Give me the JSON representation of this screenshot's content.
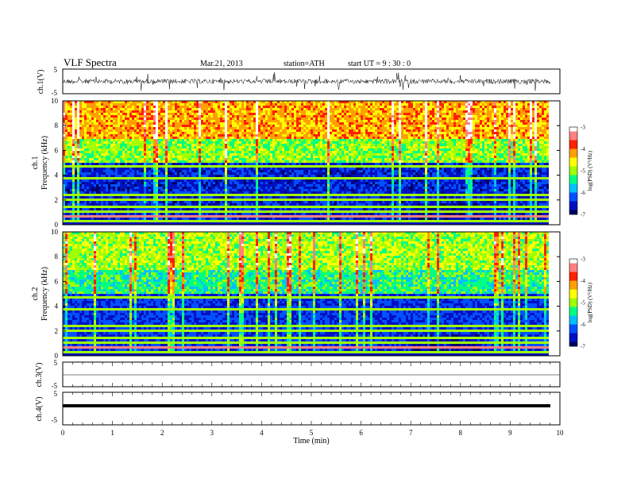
{
  "header": {
    "title": "VLF  Spectra",
    "date": "Mar.21, 2013",
    "station": "station=ATH",
    "start": "start  UT  =   9  : 30 : 0"
  },
  "chart_data": [
    {
      "type": "line",
      "ylabel": "ch.1(V)",
      "ylim": [
        -5,
        5
      ],
      "yticks": [
        "5",
        "-5"
      ],
      "description_trace": "noisy waveform around 0 V"
    },
    {
      "type": "heatmap",
      "ylabel": "ch.1\nFrequency  (kHz)",
      "ylabel_ch": "ch.1",
      "ylabel_freq": "Frequency  (kHz)",
      "ylim": [
        0,
        10
      ],
      "yticks": [
        "0",
        "2",
        "4",
        "6",
        "8",
        "10"
      ],
      "colorbar": {
        "label": "log(PSD) (V²/Hz)",
        "range": [
          -7,
          -3
        ],
        "ticks": [
          "-3",
          "-4",
          "-5",
          "-6",
          "-7"
        ]
      }
    },
    {
      "type": "heatmap",
      "ylabel_ch": "ch.2",
      "ylabel_freq": "Frequency  (kHz)",
      "ylim": [
        0,
        10
      ],
      "yticks": [
        "0",
        "2",
        "4",
        "6",
        "8",
        "10"
      ],
      "colorbar": {
        "label": "log(PSD) (V²/Hz)",
        "range": [
          -7,
          -3
        ],
        "ticks": [
          "-3",
          "-4",
          "-5",
          "-6",
          "-7"
        ]
      }
    },
    {
      "type": "line",
      "ylabel": "ch.3(V)",
      "ylim": [
        -5,
        5
      ],
      "yticks": [
        "5",
        "-5"
      ]
    },
    {
      "type": "line",
      "ylabel": "ch.4(V)",
      "ylim": [
        -5,
        5
      ],
      "yticks": [
        "5",
        "-5"
      ]
    }
  ],
  "xaxis": {
    "label": "Time  (min)",
    "xlim": [
      0,
      10
    ],
    "ticks": [
      "0",
      "1",
      "2",
      "3",
      "4",
      "5",
      "6",
      "7",
      "8",
      "9",
      "10"
    ]
  },
  "colors": {
    "cmap": [
      "#000060",
      "#0010c0",
      "#0050ff",
      "#00c0ff",
      "#00ff80",
      "#a0ff00",
      "#ffff00",
      "#ffa000",
      "#ff2000",
      "#ff8080",
      "#ffffff"
    ]
  }
}
